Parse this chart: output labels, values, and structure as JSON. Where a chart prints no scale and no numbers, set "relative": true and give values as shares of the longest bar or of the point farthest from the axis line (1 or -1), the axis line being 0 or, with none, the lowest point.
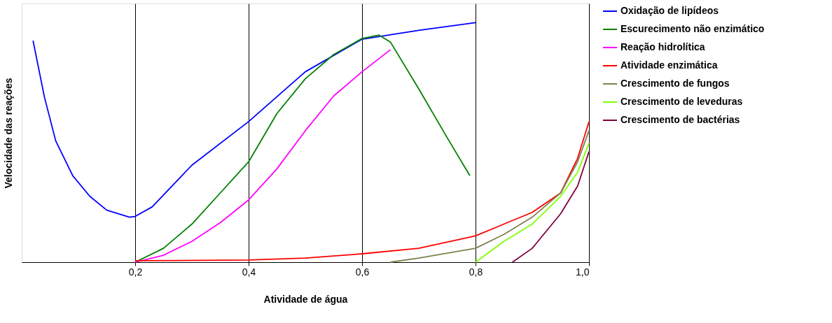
{
  "chart_data": {
    "type": "line",
    "relative": true,
    "xlabel": "Atividade de água",
    "ylabel": "Velocidade das reações",
    "xlim": [
      0,
      1.0
    ],
    "xticks": [
      {
        "value": 0.2,
        "label": "0,2"
      },
      {
        "value": 0.4,
        "label": "0,4"
      },
      {
        "value": 0.6,
        "label": "0,6"
      },
      {
        "value": 0.8,
        "label": "0,8"
      },
      {
        "value": 1.0,
        "label": "1,0"
      }
    ],
    "grid": "x",
    "legend": "right",
    "marker": "none",
    "line_style": "solid",
    "series": [
      {
        "name": "Oxidação de lipídeos",
        "color": "#0000ff",
        "x": [
          0.02,
          0.04,
          0.06,
          0.09,
          0.12,
          0.15,
          0.19,
          0.2,
          0.23,
          0.3,
          0.4,
          0.5,
          0.6,
          0.7,
          0.8
        ],
        "values": [
          0.925,
          0.69,
          0.506,
          0.361,
          0.275,
          0.217,
          0.188,
          0.191,
          0.231,
          0.405,
          0.587,
          0.795,
          0.931,
          0.968,
          1.0
        ]
      },
      {
        "name": "Escurecimento não enzimático",
        "color": "#008000",
        "x": [
          0.2,
          0.25,
          0.3,
          0.35,
          0.4,
          0.45,
          0.5,
          0.55,
          0.6,
          0.63,
          0.65,
          0.7,
          0.75,
          0.79
        ],
        "values": [
          0,
          0.058,
          0.159,
          0.289,
          0.419,
          0.621,
          0.766,
          0.867,
          0.934,
          0.948,
          0.919,
          0.723,
          0.52,
          0.361
        ]
      },
      {
        "name": "Reação hidrolítica",
        "color": "#ff00ff",
        "x": [
          0.2,
          0.25,
          0.3,
          0.35,
          0.4,
          0.45,
          0.5,
          0.55,
          0.6,
          0.65
        ],
        "values": [
          0,
          0.029,
          0.087,
          0.165,
          0.26,
          0.39,
          0.549,
          0.694,
          0.795,
          0.887
        ]
      },
      {
        "name": "Atividade enzimática",
        "color": "#ff0000",
        "x": [
          0.2,
          0.4,
          0.5,
          0.6,
          0.7,
          0.8,
          0.85,
          0.9,
          0.95,
          0.98,
          1.0
        ],
        "values": [
          0.006,
          0.009,
          0.017,
          0.035,
          0.058,
          0.11,
          0.159,
          0.208,
          0.289,
          0.434,
          0.587
        ]
      },
      {
        "name": "Crescimento de fungos",
        "color": "#808050",
        "x": [
          0.65,
          0.7,
          0.8,
          0.85,
          0.9,
          0.95,
          0.98,
          1.0
        ],
        "values": [
          0,
          0.017,
          0.058,
          0.116,
          0.188,
          0.289,
          0.419,
          0.549
        ]
      },
      {
        "name": "Crescimento de leveduras",
        "color": "#80ff00",
        "x": [
          0.8,
          0.85,
          0.9,
          0.95,
          0.98,
          1.0
        ],
        "values": [
          0,
          0.087,
          0.159,
          0.275,
          0.376,
          0.497
        ]
      },
      {
        "name": "Crescimento de bactérias",
        "color": "#800040",
        "x": [
          0.865,
          0.9,
          0.95,
          0.98,
          1.0
        ],
        "values": [
          0,
          0.058,
          0.202,
          0.318,
          0.462
        ]
      }
    ]
  }
}
